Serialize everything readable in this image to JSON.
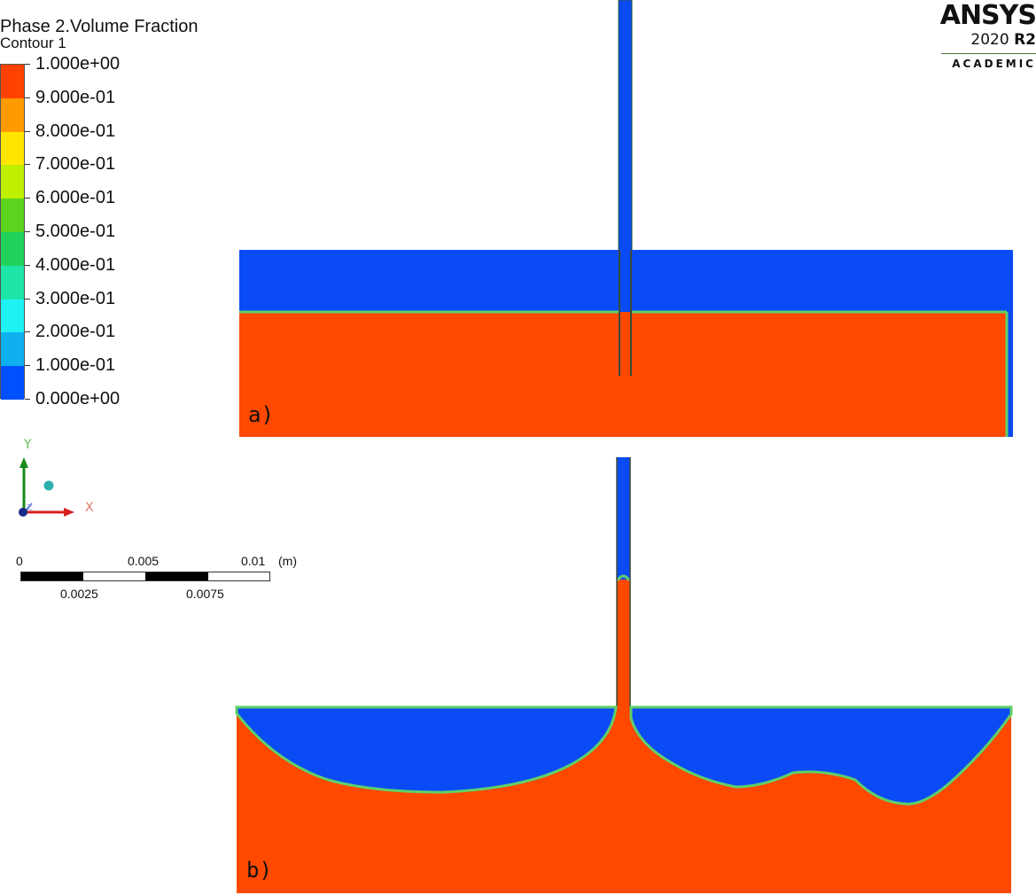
{
  "legend": {
    "title": "Phase 2.Volume Fraction",
    "subtitle": "Contour 1",
    "ticks": [
      "1.000e+00",
      "9.000e-01",
      "8.000e-01",
      "7.000e-01",
      "6.000e-01",
      "5.000e-01",
      "4.000e-01",
      "3.000e-01",
      "2.000e-01",
      "1.000e-01",
      "0.000e+00"
    ],
    "colors": [
      "#ff4200",
      "#ff9a00",
      "#ffe600",
      "#bff000",
      "#5ad41e",
      "#21d25a",
      "#1ee6a8",
      "#1ef2f2",
      "#0fb0f0",
      "#0050ff"
    ]
  },
  "triad": {
    "y_label": "Y",
    "x_label": "X",
    "z_label": "Z"
  },
  "scale_bar": {
    "top_labels": [
      "0",
      "0.005",
      "0.01"
    ],
    "unit": "(m)",
    "bottom_labels": [
      "0.0025",
      "0.0075"
    ]
  },
  "logo": {
    "name": "ANSYS",
    "version_year": "2020",
    "version_release": "R2",
    "edition": "ACADEMIC"
  },
  "panels": {
    "a": {
      "label": "a)"
    },
    "b": {
      "label": "b)"
    }
  },
  "colors": {
    "gas": "#0a4bf5",
    "liquid": "#ff4800",
    "interface": "#5fd06a"
  }
}
